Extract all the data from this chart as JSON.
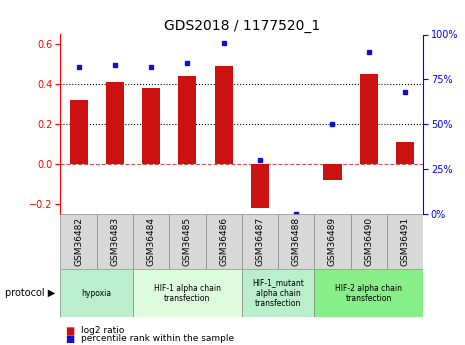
{
  "title": "GDS2018 / 1177520_1",
  "samples": [
    "GSM36482",
    "GSM36483",
    "GSM36484",
    "GSM36485",
    "GSM36486",
    "GSM36487",
    "GSM36488",
    "GSM36489",
    "GSM36490",
    "GSM36491"
  ],
  "log2_ratio": [
    0.32,
    0.41,
    0.38,
    0.44,
    0.49,
    -0.22,
    0.0,
    -0.08,
    0.45,
    0.11
  ],
  "percentile": [
    82,
    83,
    82,
    84,
    95,
    30,
    0,
    50,
    90,
    68
  ],
  "bar_color": "#cc1111",
  "dot_color": "#1111cc",
  "ylim_left": [
    -0.25,
    0.65
  ],
  "ylim_right": [
    0,
    100
  ],
  "yticks_left": [
    -0.2,
    0.0,
    0.2,
    0.4,
    0.6
  ],
  "yticks_right": [
    0,
    25,
    50,
    75,
    100
  ],
  "hlines": [
    0.4,
    0.2,
    0.0
  ],
  "hline_colors": [
    "black",
    "black",
    "#cc5555"
  ],
  "hline_styles": [
    "dotted",
    "dotted",
    "dashed"
  ],
  "group_hypoxia": {
    "label": "hypoxia",
    "samples": [
      0,
      1
    ],
    "color": "#bbeecc"
  },
  "group_hif1": {
    "label": "HIF-1 alpha chain\ntransfection",
    "samples": [
      2,
      3,
      4
    ],
    "color": "#ddfcdd"
  },
  "group_mutant": {
    "label": "HIF-1_mutant\nalpha chain\ntransfection",
    "samples": [
      5,
      6
    ],
    "color": "#bbeecc"
  },
  "group_hif2": {
    "label": "HIF-2 alpha chain\ntransfection",
    "samples": [
      7,
      8,
      9
    ],
    "color": "#88ee88"
  },
  "legend_log2": "log2 ratio",
  "legend_pct": "percentile rank within the sample",
  "protocol_label": "protocol",
  "title_fontsize": 10,
  "tick_fontsize": 7,
  "bar_width": 0.5
}
